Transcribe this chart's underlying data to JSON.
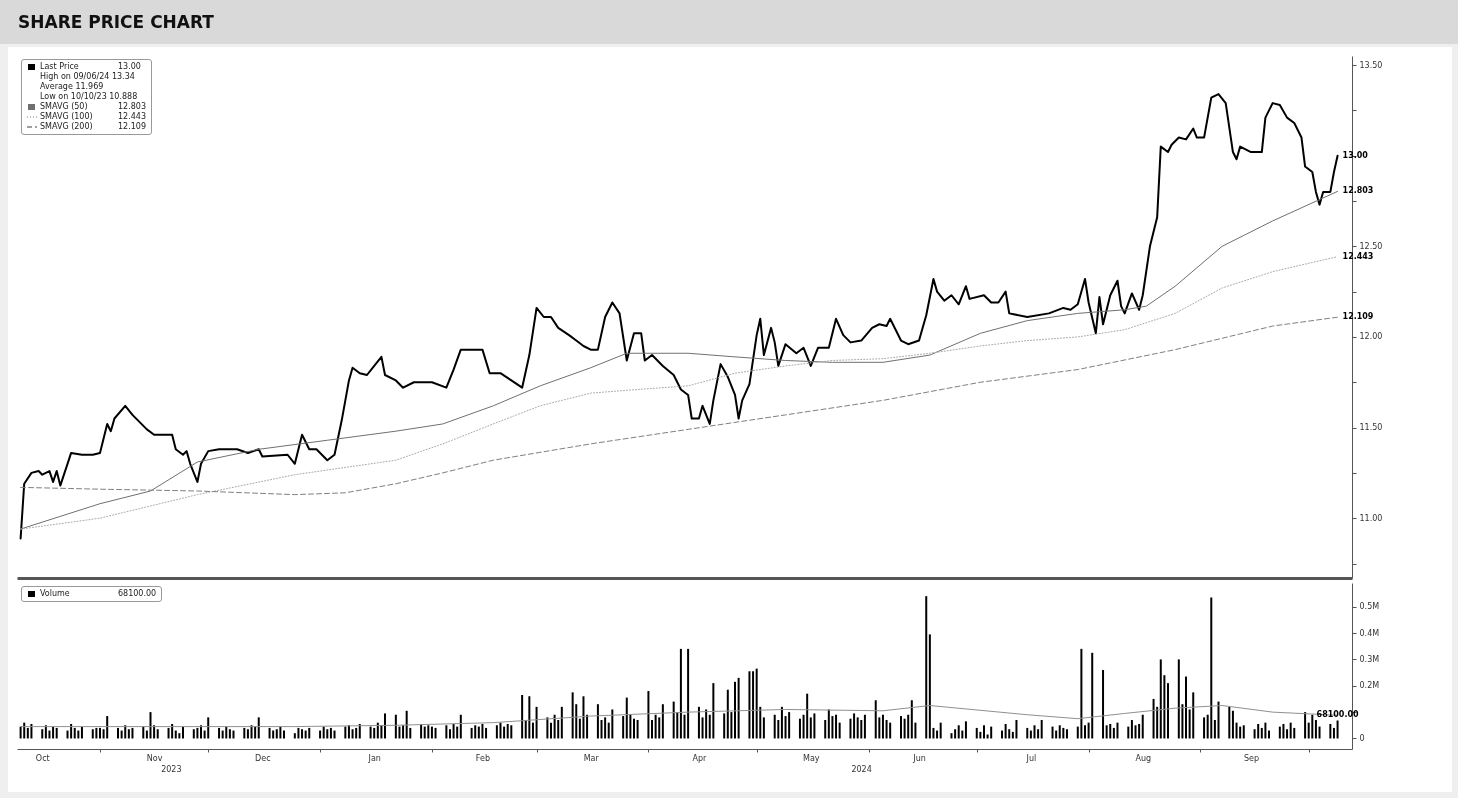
{
  "chart_data": [
    {
      "type": "line",
      "title": "SHARE PRICE CHART",
      "legend": "top left",
      "tick_labels": "y",
      "xlim": [
        "2023-10-09",
        "2024-10-13"
      ],
      "ylim": [
        10.67,
        13.55
      ],
      "yticks": [
        {
          "value": 10.75,
          "label": null
        },
        {
          "value": 11,
          "label": "11.00"
        },
        {
          "value": 11.25,
          "label": null
        },
        {
          "value": 11.5,
          "label": "11.50"
        },
        {
          "value": 11.75,
          "label": null
        },
        {
          "value": 12,
          "label": "12.00"
        },
        {
          "value": 12.25,
          "label": null
        },
        {
          "value": 12.5,
          "label": "12.50"
        },
        {
          "value": 12.75,
          "label": null
        },
        {
          "value": 13,
          "label": null
        },
        {
          "value": 13.25,
          "label": null
        },
        {
          "value": 13.5,
          "label": "13.50"
        }
      ],
      "annotations": [
        "High on 09/06/24 13.34",
        "Average 11.969",
        "Low on 10/10/23 10.888"
      ],
      "series": [
        {
          "name": "Last Price",
          "color": "#000000",
          "line_style": "solid",
          "x": [
            "2023-10-10",
            "2023-10-11",
            "2023-10-13",
            "2023-10-15",
            "2023-10-16",
            "2023-10-18",
            "2023-10-19",
            "2023-10-20",
            "2023-10-21",
            "2023-10-23",
            "2023-10-24",
            "2023-10-27",
            "2023-10-30",
            "2023-11-01",
            "2023-11-03",
            "2023-11-04",
            "2023-11-05",
            "2023-11-08",
            "2023-11-10",
            "2023-11-14",
            "2023-11-16",
            "2023-11-21",
            "2023-11-22",
            "2023-11-24",
            "2023-11-25",
            "2023-11-26",
            "2023-11-28",
            "2023-11-29",
            "2023-12-01",
            "2023-12-04",
            "2023-12-09",
            "2023-12-12",
            "2023-12-15",
            "2023-12-16",
            "2023-12-23",
            "2023-12-25",
            "2023-12-27",
            "2023-12-29",
            "2023-12-31",
            "2024-01-03",
            "2024-01-05",
            "2024-01-07",
            "2024-01-09",
            "2024-01-10",
            "2024-01-12",
            "2024-01-14",
            "2024-01-16",
            "2024-01-18",
            "2024-01-19",
            "2024-01-22",
            "2024-01-24",
            "2024-01-27",
            "2024-02-01",
            "2024-02-05",
            "2024-02-07",
            "2024-02-09",
            "2024-02-15",
            "2024-02-17",
            "2024-02-20",
            "2024-02-23",
            "2024-02-26",
            "2024-02-28",
            "2024-03-01",
            "2024-03-03",
            "2024-03-05",
            "2024-03-07",
            "2024-03-10",
            "2024-03-12",
            "2024-03-14",
            "2024-03-16",
            "2024-03-18",
            "2024-03-20",
            "2024-03-22",
            "2024-03-24",
            "2024-03-26",
            "2024-03-28",
            "2024-03-30",
            "2024-03-31",
            "2024-04-02",
            "2024-04-05",
            "2024-04-08",
            "2024-04-10",
            "2024-04-12",
            "2024-04-13",
            "2024-04-15",
            "2024-04-16",
            "2024-04-18",
            "2024-04-19",
            "2024-04-21",
            "2024-04-23",
            "2024-04-25",
            "2024-04-26",
            "2024-04-27",
            "2024-04-29",
            "2024-05-01",
            "2024-05-02",
            "2024-05-03",
            "2024-05-05",
            "2024-05-06",
            "2024-05-07",
            "2024-05-09",
            "2024-05-12",
            "2024-05-14",
            "2024-05-16",
            "2024-05-18",
            "2024-05-21",
            "2024-05-23",
            "2024-05-25",
            "2024-05-27",
            "2024-05-30",
            "2024-06-02",
            "2024-06-04",
            "2024-06-06",
            "2024-06-07",
            "2024-06-10",
            "2024-06-12",
            "2024-06-15",
            "2024-06-17",
            "2024-06-19",
            "2024-06-20",
            "2024-06-22",
            "2024-06-24",
            "2024-06-26",
            "2024-06-28",
            "2024-06-29",
            "2024-07-03",
            "2024-07-05",
            "2024-07-07",
            "2024-07-09",
            "2024-07-10",
            "2024-07-15",
            "2024-07-21",
            "2024-07-25",
            "2024-07-27",
            "2024-07-29",
            "2024-07-31",
            "2024-08-01",
            "2024-08-03",
            "2024-08-04",
            "2024-08-05",
            "2024-08-07",
            "2024-08-09",
            "2024-08-10",
            "2024-08-11",
            "2024-08-13",
            "2024-08-15",
            "2024-08-16",
            "2024-08-18",
            "2024-08-20",
            "2024-08-21",
            "2024-08-23",
            "2024-08-24",
            "2024-08-26",
            "2024-08-28",
            "2024-08-30",
            "2024-08-31",
            "2024-09-02",
            "2024-09-04",
            "2024-09-06",
            "2024-09-08",
            "2024-09-10",
            "2024-09-11",
            "2024-09-12",
            "2024-09-15",
            "2024-09-18",
            "2024-09-19",
            "2024-09-21",
            "2024-09-23",
            "2024-09-25",
            "2024-09-27",
            "2024-09-29",
            "2024-09-30",
            "2024-10-02",
            "2024-10-03",
            "2024-10-04",
            "2024-10-05",
            "2024-10-07",
            "2024-10-08",
            "2024-10-09"
          ],
          "values": [
            10.888,
            11.19,
            11.25,
            11.26,
            11.24,
            11.26,
            11.2,
            11.26,
            11.18,
            11.3,
            11.36,
            11.35,
            11.35,
            11.36,
            11.52,
            11.48,
            11.55,
            11.62,
            11.57,
            11.49,
            11.46,
            11.46,
            11.38,
            11.35,
            11.37,
            11.3,
            11.2,
            11.3,
            11.37,
            11.38,
            11.38,
            11.36,
            11.38,
            11.34,
            11.35,
            11.3,
            11.46,
            11.38,
            11.38,
            11.32,
            11.35,
            11.54,
            11.76,
            11.83,
            11.8,
            11.79,
            11.84,
            11.89,
            11.79,
            11.76,
            11.72,
            11.75,
            11.75,
            11.72,
            11.82,
            11.93,
            11.93,
            11.8,
            11.8,
            11.76,
            11.72,
            11.9,
            12.16,
            12.11,
            12.11,
            12.05,
            12.01,
            11.98,
            11.95,
            11.93,
            11.93,
            12.11,
            12.19,
            12.13,
            11.87,
            12.02,
            12.02,
            11.87,
            11.9,
            11.84,
            11.79,
            11.71,
            11.68,
            11.55,
            11.55,
            11.62,
            11.52,
            11.65,
            11.85,
            11.78,
            11.68,
            11.55,
            11.65,
            11.74,
            12.01,
            12.1,
            11.9,
            12.05,
            11.97,
            11.84,
            11.96,
            11.91,
            11.94,
            11.84,
            11.94,
            11.94,
            12.1,
            12.01,
            11.97,
            11.98,
            12.05,
            12.07,
            12.06,
            12.1,
            11.98,
            11.96,
            11.98,
            12.12,
            12.32,
            12.25,
            12.2,
            12.23,
            12.18,
            12.28,
            12.21,
            12.23,
            12.19,
            12.19,
            12.25,
            12.13,
            12.11,
            12.13,
            12.16,
            12.15,
            12.18,
            12.32,
            12.19,
            12.02,
            12.22,
            12.07,
            12.23,
            12.31,
            12.17,
            12.13,
            12.24,
            12.15,
            12.23,
            12.5,
            12.66,
            13.05,
            13.02,
            13.06,
            13.1,
            13.09,
            13.15,
            13.1,
            13.1,
            13.32,
            13.34,
            13.29,
            13.02,
            12.98,
            13.05,
            13.02,
            13.02,
            13.21,
            13.29,
            13.28,
            13.21,
            13.18,
            13.1,
            12.94,
            12.91,
            12.8,
            12.73,
            12.8,
            12.8,
            12.91,
            13.0
          ],
          "value_labels": [
            null,
            null,
            null,
            null,
            null,
            null,
            null,
            null,
            null,
            null,
            null,
            null,
            null,
            null,
            null,
            null,
            null,
            null,
            null,
            null,
            null,
            null,
            null,
            null,
            null,
            null,
            null,
            null,
            null,
            null,
            null,
            null,
            null,
            null,
            null,
            null,
            null,
            null,
            null,
            null,
            null,
            null,
            null,
            null,
            null,
            null,
            null,
            null,
            null,
            null,
            null,
            null,
            null,
            null,
            null,
            null,
            null,
            null,
            null,
            null,
            null,
            null,
            null,
            null,
            null,
            null,
            null,
            null,
            null,
            null,
            null,
            null,
            null,
            null,
            null,
            null,
            null,
            null,
            null,
            null,
            null,
            null,
            null,
            null,
            null,
            null,
            null,
            null,
            null,
            null,
            null,
            null,
            null,
            null,
            null,
            null,
            null,
            null,
            null,
            null,
            null,
            null,
            null,
            null,
            null,
            null,
            null,
            null,
            null,
            null,
            null,
            null,
            null,
            null,
            null,
            null,
            null,
            null,
            null,
            null,
            null,
            null,
            null,
            null,
            null,
            null,
            null,
            null,
            null,
            null,
            null,
            null,
            null,
            null,
            null,
            null,
            null,
            null,
            null,
            null,
            null,
            null,
            null,
            null,
            null,
            null,
            null,
            null,
            null,
            null,
            null,
            null,
            null,
            null,
            null,
            null,
            null,
            null,
            null,
            null,
            null,
            null,
            null,
            null,
            null,
            null,
            null,
            null,
            null,
            null,
            null,
            null,
            null,
            null,
            null,
            null,
            null,
            null,
            "13.00"
          ]
        },
        {
          "name": "SMAVG (50)",
          "color": "#707070",
          "line_style": "solid",
          "x": [
            "2023-10-10",
            "2023-11-01",
            "2023-11-15",
            "2023-11-28",
            "2023-12-15",
            "2024-01-03",
            "2024-01-22",
            "2024-02-04",
            "2024-02-18",
            "2024-03-02",
            "2024-03-16",
            "2024-03-26",
            "2024-04-12",
            "2024-04-25",
            "2024-05-09",
            "2024-05-22",
            "2024-06-05",
            "2024-06-18",
            "2024-07-02",
            "2024-07-15",
            "2024-07-29",
            "2024-08-11",
            "2024-08-17",
            "2024-08-25",
            "2024-09-07",
            "2024-09-21",
            "2024-10-09"
          ],
          "values": [
            10.94,
            11.08,
            11.15,
            11.31,
            11.38,
            11.43,
            11.48,
            11.52,
            11.62,
            11.73,
            11.83,
            11.91,
            11.91,
            11.89,
            11.87,
            11.86,
            11.86,
            11.9,
            12.02,
            12.09,
            12.13,
            12.15,
            12.17,
            12.28,
            12.5,
            12.64,
            12.803
          ],
          "value_labels": [
            null,
            null,
            null,
            null,
            null,
            null,
            null,
            null,
            null,
            null,
            null,
            null,
            null,
            null,
            null,
            null,
            null,
            null,
            null,
            null,
            null,
            null,
            null,
            null,
            null,
            null,
            "12.803"
          ]
        },
        {
          "name": "SMAVG (100)",
          "color": "#a8a8a8",
          "line_style": "dotted",
          "x": [
            "2023-10-10",
            "2023-11-01",
            "2023-11-28",
            "2023-12-25",
            "2024-01-22",
            "2024-02-04",
            "2024-02-18",
            "2024-03-02",
            "2024-03-16",
            "2024-03-29",
            "2024-04-12",
            "2024-04-25",
            "2024-05-09",
            "2024-05-22",
            "2024-06-05",
            "2024-06-18",
            "2024-07-02",
            "2024-07-15",
            "2024-07-29",
            "2024-08-11",
            "2024-08-25",
            "2024-09-07",
            "2024-09-21",
            "2024-10-09"
          ],
          "values": [
            10.94,
            11.0,
            11.13,
            11.24,
            11.32,
            11.41,
            11.52,
            11.62,
            11.69,
            11.71,
            11.73,
            11.8,
            11.84,
            11.87,
            11.88,
            11.91,
            11.95,
            11.98,
            12.0,
            12.04,
            12.13,
            12.27,
            12.36,
            12.443
          ],
          "value_labels": [
            null,
            null,
            null,
            null,
            null,
            null,
            null,
            null,
            null,
            null,
            null,
            null,
            null,
            null,
            null,
            null,
            null,
            null,
            null,
            null,
            null,
            null,
            null,
            "12.443"
          ]
        },
        {
          "name": "SMAVG (200)",
          "color": "#808080",
          "line_style": "dashed",
          "x": [
            "2023-10-10",
            "2023-11-01",
            "2023-11-28",
            "2023-12-25",
            "2024-01-08",
            "2024-01-22",
            "2024-02-04",
            "2024-02-18",
            "2024-03-16",
            "2024-04-12",
            "2024-05-09",
            "2024-06-05",
            "2024-07-02",
            "2024-07-29",
            "2024-08-25",
            "2024-09-21",
            "2024-10-09"
          ],
          "values": [
            11.17,
            11.16,
            11.15,
            11.13,
            11.14,
            11.19,
            11.25,
            11.32,
            11.41,
            11.49,
            11.57,
            11.65,
            11.75,
            11.82,
            11.93,
            12.06,
            12.109
          ],
          "value_labels": [
            null,
            null,
            null,
            null,
            null,
            null,
            null,
            null,
            null,
            null,
            null,
            null,
            null,
            null,
            null,
            null,
            "12.109"
          ]
        }
      ]
    },
    {
      "type": "bar",
      "legend": "top left",
      "xlim": [
        "2023-10-09",
        "2024-10-13"
      ],
      "ylim": [
        -40000,
        590000
      ],
      "xticks": [
        {
          "value": "2023-10-16",
          "label": "Oct"
        },
        {
          "value": "2023-11-01",
          "label": null
        },
        {
          "value": "2023-11-16",
          "label": "Nov"
        },
        {
          "value": "2023-12-01",
          "label": null
        },
        {
          "value": "2023-12-16",
          "label": "Dec"
        },
        {
          "value": "2024-01-01",
          "label": null
        },
        {
          "value": "2024-01-16",
          "label": "Jan"
        },
        {
          "value": "2024-02-01",
          "label": null
        },
        {
          "value": "2024-02-15",
          "label": "Feb"
        },
        {
          "value": "2024-03-01",
          "label": null
        },
        {
          "value": "2024-03-16",
          "label": "Mar"
        },
        {
          "value": "2024-04-01",
          "label": null
        },
        {
          "value": "2024-04-15",
          "label": "Apr"
        },
        {
          "value": "2024-05-01",
          "label": null
        },
        {
          "value": "2024-05-16",
          "label": "May"
        },
        {
          "value": "2024-06-01",
          "label": null
        },
        {
          "value": "2024-06-15",
          "label": "Jun"
        },
        {
          "value": "2024-07-01",
          "label": null
        },
        {
          "value": "2024-07-16",
          "label": "Jul"
        },
        {
          "value": "2024-08-01",
          "label": null
        },
        {
          "value": "2024-08-16",
          "label": "Aug"
        },
        {
          "value": "2024-09-01",
          "label": null
        },
        {
          "value": "2024-09-15",
          "label": "Sep"
        },
        {
          "value": "2024-10-01",
          "label": null
        }
      ],
      "yticks": [
        0,
        {
          "value": 100000,
          "label": null
        },
        {
          "value": 200000,
          "label": "0.2M"
        },
        {
          "value": 300000,
          "label": "0.3M"
        },
        {
          "value": 400000,
          "label": "0.4M"
        },
        {
          "value": 500000,
          "label": "0.5M"
        }
      ],
      "annotations": [
        "2023",
        "2024"
      ],
      "series": [
        {
          "name": "Volume",
          "color": "#000000",
          "x": [
            "2023-10-10",
            "2023-10-11",
            "2023-10-12",
            "2023-10-13",
            "2023-10-16",
            "2023-10-17",
            "2023-10-18",
            "2023-10-19",
            "2023-10-20",
            "2023-10-23",
            "2023-10-24",
            "2023-10-25",
            "2023-10-26",
            "2023-10-27",
            "2023-10-30",
            "2023-10-31",
            "2023-11-01",
            "2023-11-02",
            "2023-11-03",
            "2023-11-06",
            "2023-11-07",
            "2023-11-08",
            "2023-11-09",
            "2023-11-10",
            "2023-11-13",
            "2023-11-14",
            "2023-11-15",
            "2023-11-16",
            "2023-11-17",
            "2023-11-20",
            "2023-11-21",
            "2023-11-22",
            "2023-11-23",
            "2023-11-24",
            "2023-11-27",
            "2023-11-28",
            "2023-11-29",
            "2023-11-30",
            "2023-12-01",
            "2023-12-04",
            "2023-12-05",
            "2023-12-06",
            "2023-12-07",
            "2023-12-08",
            "2023-12-11",
            "2023-12-12",
            "2023-12-13",
            "2023-12-14",
            "2023-12-15",
            "2023-12-18",
            "2023-12-19",
            "2023-12-20",
            "2023-12-21",
            "2023-12-22",
            "2023-12-25",
            "2023-12-26",
            "2023-12-27",
            "2023-12-28",
            "2023-12-29",
            "2024-01-01",
            "2024-01-02",
            "2024-01-03",
            "2024-01-04",
            "2024-01-05",
            "2024-01-08",
            "2024-01-09",
            "2024-01-10",
            "2024-01-11",
            "2024-01-12",
            "2024-01-15",
            "2024-01-16",
            "2024-01-17",
            "2024-01-18",
            "2024-01-19",
            "2024-01-22",
            "2024-01-23",
            "2024-01-24",
            "2024-01-25",
            "2024-01-26",
            "2024-01-29",
            "2024-01-30",
            "2024-01-31",
            "2024-02-01",
            "2024-02-02",
            "2024-02-05",
            "2024-02-06",
            "2024-02-07",
            "2024-02-08",
            "2024-02-09",
            "2024-02-12",
            "2024-02-13",
            "2024-02-14",
            "2024-02-15",
            "2024-02-16",
            "2024-02-19",
            "2024-02-20",
            "2024-02-21",
            "2024-02-22",
            "2024-02-23",
            "2024-02-26",
            "2024-02-27",
            "2024-02-28",
            "2024-02-29",
            "2024-03-01",
            "2024-03-04",
            "2024-03-05",
            "2024-03-06",
            "2024-03-07",
            "2024-03-08",
            "2024-03-11",
            "2024-03-12",
            "2024-03-13",
            "2024-03-14",
            "2024-03-15",
            "2024-03-18",
            "2024-03-19",
            "2024-03-20",
            "2024-03-21",
            "2024-03-22",
            "2024-03-25",
            "2024-03-26",
            "2024-03-27",
            "2024-03-28",
            "2024-03-29",
            "2024-04-01",
            "2024-04-02",
            "2024-04-03",
            "2024-04-04",
            "2024-04-05",
            "2024-04-08",
            "2024-04-09",
            "2024-04-10",
            "2024-04-11",
            "2024-04-12",
            "2024-04-15",
            "2024-04-16",
            "2024-04-17",
            "2024-04-18",
            "2024-04-19",
            "2024-04-22",
            "2024-04-23",
            "2024-04-24",
            "2024-04-25",
            "2024-04-26",
            "2024-04-29",
            "2024-04-30",
            "2024-05-01",
            "2024-05-02",
            "2024-05-03",
            "2024-05-06",
            "2024-05-07",
            "2024-05-08",
            "2024-05-09",
            "2024-05-10",
            "2024-05-13",
            "2024-05-14",
            "2024-05-15",
            "2024-05-16",
            "2024-05-17",
            "2024-05-20",
            "2024-05-21",
            "2024-05-22",
            "2024-05-23",
            "2024-05-24",
            "2024-05-27",
            "2024-05-28",
            "2024-05-29",
            "2024-05-30",
            "2024-05-31",
            "2024-06-03",
            "2024-06-04",
            "2024-06-05",
            "2024-06-06",
            "2024-06-07",
            "2024-06-10",
            "2024-06-11",
            "2024-06-12",
            "2024-06-13",
            "2024-06-14",
            "2024-06-17",
            "2024-06-18",
            "2024-06-19",
            "2024-06-20",
            "2024-06-21",
            "2024-06-24",
            "2024-06-25",
            "2024-06-26",
            "2024-06-27",
            "2024-06-28",
            "2024-07-01",
            "2024-07-02",
            "2024-07-03",
            "2024-07-04",
            "2024-07-05",
            "2024-07-08",
            "2024-07-09",
            "2024-07-10",
            "2024-07-11",
            "2024-07-12",
            "2024-07-15",
            "2024-07-16",
            "2024-07-17",
            "2024-07-18",
            "2024-07-19",
            "2024-07-22",
            "2024-07-23",
            "2024-07-24",
            "2024-07-25",
            "2024-07-26",
            "2024-07-29",
            "2024-07-30",
            "2024-07-31",
            "2024-08-01",
            "2024-08-02",
            "2024-08-05",
            "2024-08-06",
            "2024-08-07",
            "2024-08-08",
            "2024-08-09",
            "2024-08-12",
            "2024-08-13",
            "2024-08-14",
            "2024-08-15",
            "2024-08-16",
            "2024-08-19",
            "2024-08-20",
            "2024-08-21",
            "2024-08-22",
            "2024-08-23",
            "2024-08-26",
            "2024-08-27",
            "2024-08-28",
            "2024-08-29",
            "2024-08-30",
            "2024-09-02",
            "2024-09-03",
            "2024-09-04",
            "2024-09-05",
            "2024-09-06",
            "2024-09-09",
            "2024-09-10",
            "2024-09-11",
            "2024-09-12",
            "2024-09-13",
            "2024-09-16",
            "2024-09-17",
            "2024-09-18",
            "2024-09-19",
            "2024-09-20",
            "2024-09-23",
            "2024-09-24",
            "2024-09-25",
            "2024-09-26",
            "2024-09-27",
            "2024-09-30",
            "2024-10-01",
            "2024-10-02",
            "2024-10-03",
            "2024-10-04",
            "2024-10-07",
            "2024-10-08",
            "2024-10-09"
          ],
          "values": [
            45000,
            60000,
            40000,
            55000,
            35000,
            50000,
            30000,
            45000,
            40000,
            30000,
            55000,
            40000,
            30000,
            45000,
            35000,
            40000,
            40000,
            35000,
            85000,
            40000,
            30000,
            50000,
            35000,
            40000,
            45000,
            30000,
            100000,
            50000,
            35000,
            40000,
            55000,
            30000,
            20000,
            45000,
            35000,
            40000,
            50000,
            30000,
            80000,
            40000,
            30000,
            45000,
            35000,
            30000,
            40000,
            35000,
            50000,
            45000,
            80000,
            40000,
            30000,
            35000,
            45000,
            30000,
            20000,
            40000,
            35000,
            30000,
            40000,
            30000,
            45000,
            35000,
            40000,
            30000,
            45000,
            50000,
            35000,
            40000,
            55000,
            45000,
            40000,
            60000,
            50000,
            95000,
            90000,
            45000,
            50000,
            105000,
            40000,
            55000,
            45000,
            50000,
            45000,
            40000,
            50000,
            35000,
            55000,
            45000,
            90000,
            40000,
            50000,
            45000,
            55000,
            40000,
            50000,
            60000,
            45000,
            55000,
            50000,
            165000,
            70000,
            160000,
            60000,
            120000,
            80000,
            60000,
            90000,
            70000,
            120000,
            175000,
            130000,
            75000,
            160000,
            90000,
            130000,
            70000,
            80000,
            60000,
            110000,
            85000,
            155000,
            90000,
            75000,
            70000,
            180000,
            70000,
            90000,
            80000,
            130000,
            140000,
            100000,
            340000,
            90000,
            340000,
            120000,
            80000,
            110000,
            90000,
            210000,
            95000,
            185000,
            100000,
            215000,
            230000,
            255000,
            255000,
            265000,
            120000,
            80000,
            90000,
            70000,
            120000,
            85000,
            100000,
            75000,
            90000,
            170000,
            80000,
            95000,
            70000,
            110000,
            85000,
            90000,
            60000,
            75000,
            95000,
            80000,
            70000,
            90000,
            145000,
            80000,
            90000,
            70000,
            60000,
            85000,
            75000,
            90000,
            145000,
            60000,
            540000,
            395000,
            40000,
            30000,
            60000,
            20000,
            35000,
            50000,
            30000,
            65000,
            40000,
            25000,
            50000,
            15000,
            45000,
            30000,
            55000,
            35000,
            25000,
            70000,
            40000,
            30000,
            50000,
            35000,
            70000,
            45000,
            30000,
            50000,
            40000,
            35000,
            45000,
            340000,
            50000,
            60000,
            325000,
            260000,
            50000,
            55000,
            40000,
            60000,
            45000,
            70000,
            50000,
            55000,
            90000,
            150000,
            120000,
            300000,
            240000,
            210000,
            300000,
            130000,
            235000,
            110000,
            175000,
            80000,
            90000,
            535000,
            70000,
            140000,
            120000,
            105000,
            60000,
            45000,
            50000,
            35000,
            55000,
            40000,
            60000,
            30000,
            45000,
            55000,
            35000,
            60000,
            40000,
            100000,
            60000,
            90000,
            70000,
            45000,
            55000,
            40000,
            68100
          ],
          "value_labels": [
            null,
            null,
            null,
            null,
            null,
            null,
            null,
            null,
            null,
            null,
            null,
            null,
            null,
            null,
            null,
            null,
            null,
            null,
            null,
            null,
            null,
            null,
            null,
            null,
            null,
            null,
            null,
            null,
            null,
            null,
            null,
            null,
            null,
            null,
            null,
            null,
            null,
            null,
            null,
            null,
            null,
            null,
            null,
            null,
            null,
            null,
            null,
            null,
            null,
            null,
            null,
            null,
            null,
            null,
            null,
            null,
            null,
            null,
            null,
            null,
            null,
            null,
            null,
            null,
            null,
            null,
            null,
            null,
            null,
            null,
            null,
            null,
            null,
            null,
            null,
            null,
            null,
            null,
            null,
            null,
            null,
            null,
            null,
            null,
            null,
            null,
            null,
            null,
            null,
            null,
            null,
            null,
            null,
            null,
            null,
            null,
            null,
            null,
            null,
            null,
            null,
            null,
            null,
            null,
            null,
            null,
            null,
            null,
            null,
            null,
            null,
            null,
            null,
            null,
            null,
            null,
            null,
            null,
            null,
            null,
            null,
            null,
            null,
            null,
            null,
            null,
            null,
            null,
            null,
            null,
            null,
            null,
            null,
            null,
            null,
            null,
            null,
            null,
            null,
            null,
            null,
            null,
            null,
            null,
            null,
            null,
            null,
            null,
            null,
            null,
            null,
            null,
            null,
            null,
            null,
            null,
            null,
            null,
            null,
            null,
            null,
            null,
            null,
            null,
            null,
            null,
            null,
            null,
            null,
            null,
            null,
            null,
            null,
            null,
            null,
            null,
            null,
            null,
            null,
            null,
            null,
            null,
            null,
            null,
            null,
            null,
            null,
            null,
            null,
            null,
            null,
            null,
            null,
            null,
            null,
            null,
            null,
            null,
            null,
            null,
            null,
            null,
            null,
            null,
            null,
            null,
            null,
            null,
            null,
            null,
            null,
            null,
            null,
            null,
            null,
            null,
            null,
            null,
            null,
            null,
            null,
            null,
            null,
            null,
            null,
            null,
            null,
            null,
            null,
            null,
            null,
            null,
            null,
            null,
            null,
            null,
            null,
            null,
            null,
            null,
            null,
            null,
            null,
            null,
            null,
            null,
            null,
            null,
            null,
            null,
            null,
            null,
            null,
            null,
            null,
            null,
            null,
            null,
            null,
            null,
            null,
            "68100.00"
          ]
        },
        {
          "type": "line",
          "color": "#909090",
          "x": [
            "2023-10-10",
            "2023-11-15",
            "2023-12-25",
            "2024-01-22",
            "2024-02-18",
            "2024-03-16",
            "2024-04-12",
            "2024-05-09",
            "2024-06-05",
            "2024-06-18",
            "2024-07-15",
            "2024-07-29",
            "2024-08-11",
            "2024-08-25",
            "2024-09-07",
            "2024-09-21",
            "2024-10-09"
          ],
          "values": [
            45000,
            45000,
            45000,
            50000,
            60000,
            85000,
            100000,
            110000,
            105000,
            125000,
            90000,
            75000,
            95000,
            115000,
            125000,
            100000,
            88000
          ]
        }
      ]
    }
  ]
}
